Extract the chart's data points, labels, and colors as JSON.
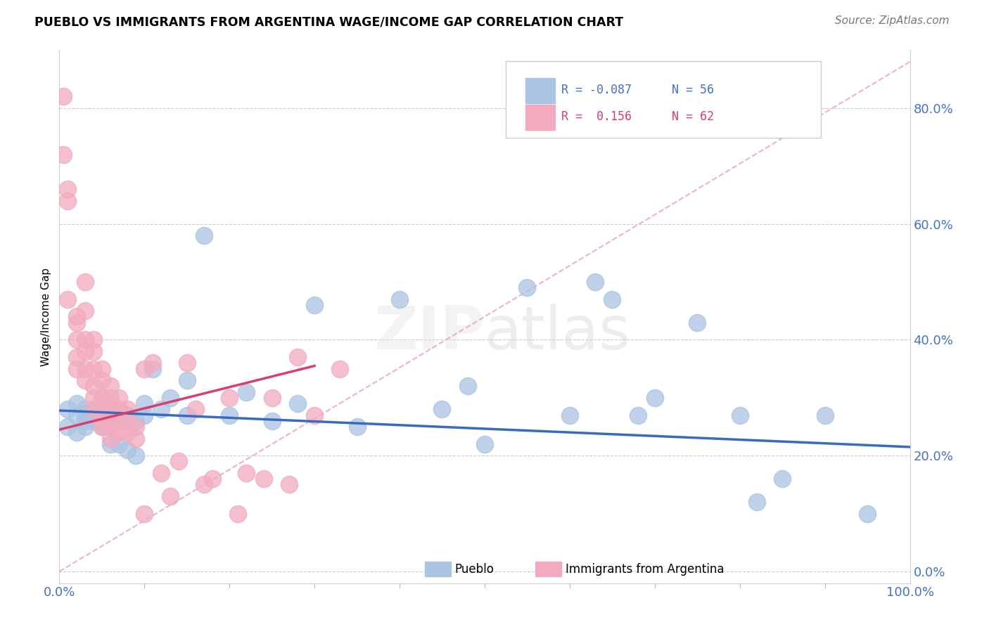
{
  "title": "PUEBLO VS IMMIGRANTS FROM ARGENTINA WAGE/INCOME GAP CORRELATION CHART",
  "source": "Source: ZipAtlas.com",
  "ylabel": "Wage/Income Gap",
  "xlim": [
    0.0,
    1.0
  ],
  "ylim": [
    -0.02,
    0.9
  ],
  "ytick_vals": [
    0.0,
    0.2,
    0.4,
    0.6,
    0.8
  ],
  "ytick_labels": [
    "0.0%",
    "20.0%",
    "40.0%",
    "60.0%",
    "80.0%"
  ],
  "blue_R": -0.087,
  "blue_N": 56,
  "pink_R": 0.156,
  "pink_N": 62,
  "blue_color": "#aac4e2",
  "pink_color": "#f2abbe",
  "blue_line_color": "#3a6bbf",
  "pink_line_color": "#d44070",
  "pink_dash_color": "#e8a0b8",
  "legend_blue_text_color": "#4472c4",
  "legend_pink_text_color": "#d44070",
  "axis_label_color": "#4472c4",
  "blue_scatter_x": [
    0.01,
    0.01,
    0.02,
    0.02,
    0.02,
    0.03,
    0.03,
    0.03,
    0.03,
    0.04,
    0.04,
    0.04,
    0.05,
    0.05,
    0.05,
    0.05,
    0.06,
    0.06,
    0.06,
    0.06,
    0.07,
    0.07,
    0.08,
    0.08,
    0.09,
    0.09,
    0.1,
    0.1,
    0.11,
    0.12,
    0.13,
    0.15,
    0.15,
    0.17,
    0.2,
    0.22,
    0.25,
    0.28,
    0.3,
    0.35,
    0.4,
    0.45,
    0.48,
    0.5,
    0.55,
    0.6,
    0.63,
    0.65,
    0.68,
    0.7,
    0.75,
    0.8,
    0.82,
    0.85,
    0.9,
    0.95
  ],
  "blue_scatter_y": [
    0.28,
    0.25,
    0.27,
    0.29,
    0.24,
    0.26,
    0.28,
    0.25,
    0.27,
    0.26,
    0.28,
    0.27,
    0.25,
    0.28,
    0.26,
    0.3,
    0.25,
    0.27,
    0.26,
    0.22,
    0.26,
    0.22,
    0.27,
    0.21,
    0.26,
    0.2,
    0.27,
    0.29,
    0.35,
    0.28,
    0.3,
    0.27,
    0.33,
    0.58,
    0.27,
    0.31,
    0.26,
    0.29,
    0.46,
    0.25,
    0.47,
    0.28,
    0.32,
    0.22,
    0.49,
    0.27,
    0.5,
    0.47,
    0.27,
    0.3,
    0.43,
    0.27,
    0.12,
    0.16,
    0.27,
    0.1
  ],
  "pink_scatter_x": [
    0.005,
    0.005,
    0.01,
    0.01,
    0.01,
    0.02,
    0.02,
    0.02,
    0.02,
    0.02,
    0.03,
    0.03,
    0.03,
    0.03,
    0.03,
    0.03,
    0.04,
    0.04,
    0.04,
    0.04,
    0.04,
    0.04,
    0.05,
    0.05,
    0.05,
    0.05,
    0.05,
    0.05,
    0.06,
    0.06,
    0.06,
    0.06,
    0.06,
    0.06,
    0.07,
    0.07,
    0.07,
    0.07,
    0.08,
    0.08,
    0.08,
    0.09,
    0.09,
    0.1,
    0.1,
    0.11,
    0.12,
    0.13,
    0.14,
    0.15,
    0.16,
    0.17,
    0.18,
    0.2,
    0.21,
    0.22,
    0.24,
    0.25,
    0.27,
    0.28,
    0.3,
    0.33
  ],
  "pink_scatter_y": [
    0.82,
    0.72,
    0.66,
    0.64,
    0.47,
    0.44,
    0.43,
    0.4,
    0.37,
    0.35,
    0.5,
    0.45,
    0.4,
    0.38,
    0.35,
    0.33,
    0.4,
    0.38,
    0.35,
    0.32,
    0.3,
    0.28,
    0.35,
    0.33,
    0.3,
    0.28,
    0.26,
    0.25,
    0.32,
    0.3,
    0.28,
    0.26,
    0.25,
    0.23,
    0.3,
    0.28,
    0.26,
    0.24,
    0.28,
    0.26,
    0.24,
    0.25,
    0.23,
    0.35,
    0.1,
    0.36,
    0.17,
    0.13,
    0.19,
    0.36,
    0.28,
    0.15,
    0.16,
    0.3,
    0.1,
    0.17,
    0.16,
    0.3,
    0.15,
    0.37,
    0.27,
    0.35
  ],
  "blue_trend_x": [
    0.0,
    1.0
  ],
  "blue_trend_y": [
    0.278,
    0.215
  ],
  "pink_trend_x": [
    0.0,
    0.3
  ],
  "pink_trend_y": [
    0.245,
    0.355
  ]
}
